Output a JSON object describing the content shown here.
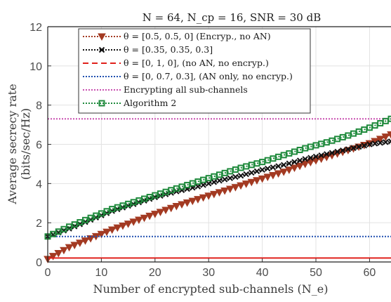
{
  "chart_data": {
    "type": "line",
    "title": "N = 64, N_cp = 16, SNR = 30 dB",
    "xlabel": "Number of encrypted sub-channels (N_e)",
    "ylabel_line1": "Average secrecy rate",
    "ylabel_line2": "(bits/sec/Hz)",
    "xlim": [
      0,
      64
    ],
    "ylim": [
      0,
      12
    ],
    "xticks": [
      "0",
      "10",
      "20",
      "30",
      "40",
      "50",
      "60"
    ],
    "yticks": [
      "0",
      "2",
      "4",
      "6",
      "8",
      "10",
      "12"
    ],
    "grid": true,
    "legend_position": "top-left",
    "series": [
      {
        "name": "θ = [0.5, 0.5, 0] (Encryp., no AN)",
        "color": "#a33a22",
        "marker": "triangle-down",
        "x": [
          0,
          4,
          8,
          12,
          16,
          20,
          24,
          28,
          32,
          36,
          40,
          44,
          48,
          52,
          56,
          60,
          64
        ],
        "y": [
          0.15,
          0.75,
          1.2,
          1.65,
          2.05,
          2.45,
          2.85,
          3.2,
          3.55,
          3.9,
          4.25,
          4.6,
          5.0,
          5.35,
          5.7,
          6.05,
          6.5
        ]
      },
      {
        "name": "θ = [0.35, 0.35, 0.3]",
        "color": "#111111",
        "marker": "x",
        "x": [
          0,
          4,
          8,
          12,
          16,
          20,
          24,
          28,
          32,
          36,
          40,
          44,
          48,
          52,
          56,
          60,
          64
        ],
        "y": [
          1.3,
          1.7,
          2.15,
          2.6,
          2.95,
          3.3,
          3.6,
          3.85,
          4.15,
          4.4,
          4.7,
          4.95,
          5.25,
          5.5,
          5.75,
          6.0,
          6.15
        ]
      },
      {
        "name": "θ = [0, 1, 0], (no AN, no encryp.)",
        "color": "#e0201b",
        "marker": "none",
        "x": [
          0,
          64
        ],
        "y": [
          0.2,
          0.2
        ]
      },
      {
        "name": "θ = [0, 0.7, 0.3], (AN only, no encryp.)",
        "color": "#1f4fb0",
        "marker": "none",
        "x": [
          0,
          64
        ],
        "y": [
          1.3,
          1.3
        ]
      },
      {
        "name": "Encrypting all sub-channels",
        "color": "#c94fb0",
        "marker": "none",
        "x": [
          0,
          64
        ],
        "y": [
          7.3,
          7.3
        ]
      },
      {
        "name": "Algorithm 2",
        "color": "#1f8a3c",
        "marker": "square",
        "x": [
          0,
          4,
          8,
          12,
          16,
          20,
          24,
          28,
          32,
          36,
          40,
          44,
          48,
          52,
          56,
          60,
          64
        ],
        "y": [
          1.3,
          1.8,
          2.25,
          2.7,
          3.05,
          3.4,
          3.75,
          4.1,
          4.45,
          4.8,
          5.1,
          5.45,
          5.8,
          6.1,
          6.45,
          6.85,
          7.3
        ]
      }
    ]
  }
}
